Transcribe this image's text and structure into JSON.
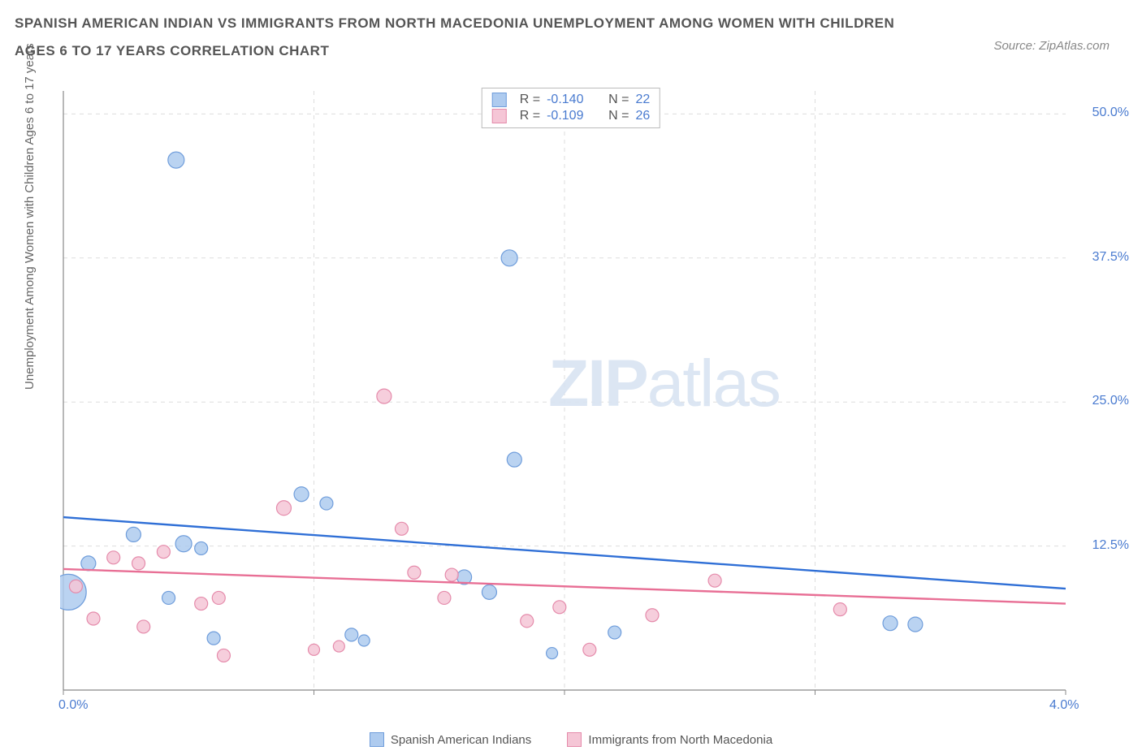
{
  "header": {
    "title": "SPANISH AMERICAN INDIAN VS IMMIGRANTS FROM NORTH MACEDONIA UNEMPLOYMENT AMONG WOMEN WITH CHILDREN AGES 6 TO 17 YEARS CORRELATION CHART",
    "source": "Source: ZipAtlas.com"
  },
  "chart": {
    "type": "scatter",
    "xlim": [
      0,
      4.0
    ],
    "ylim": [
      0,
      52
    ],
    "x_ticks": [
      {
        "v": 0.0,
        "label": "0.0%"
      },
      {
        "v": 4.0,
        "label": "4.0%"
      }
    ],
    "y_ticks": [
      {
        "v": 12.5,
        "label": "12.5%"
      },
      {
        "v": 25.0,
        "label": "25.0%"
      },
      {
        "v": 37.5,
        "label": "37.5%"
      },
      {
        "v": 50.0,
        "label": "50.0%"
      }
    ],
    "grid_color": "#dddddd",
    "axis_color": "#888888",
    "background_color": "#ffffff",
    "y_axis_label": "Unemployment Among Women with Children Ages 6 to 17 years",
    "watermark": "ZIPatlas",
    "series": [
      {
        "name": "Spanish American Indians",
        "fill": "#aecbef",
        "stroke": "#6f9ddb",
        "trend_color": "#2f6fd6",
        "trend_y0": 15.0,
        "trend_y1": 8.8,
        "R": "-0.140",
        "N": "22",
        "points": [
          {
            "x": 0.02,
            "y": 8.5,
            "r": 22
          },
          {
            "x": 0.1,
            "y": 11.0,
            "r": 9
          },
          {
            "x": 0.28,
            "y": 13.5,
            "r": 9
          },
          {
            "x": 0.45,
            "y": 46.0,
            "r": 10
          },
          {
            "x": 0.42,
            "y": 8.0,
            "r": 8
          },
          {
            "x": 0.48,
            "y": 12.7,
            "r": 10
          },
          {
            "x": 0.55,
            "y": 12.3,
            "r": 8
          },
          {
            "x": 0.6,
            "y": 4.5,
            "r": 8
          },
          {
            "x": 0.95,
            "y": 17.0,
            "r": 9
          },
          {
            "x": 1.05,
            "y": 16.2,
            "r": 8
          },
          {
            "x": 1.15,
            "y": 4.8,
            "r": 8
          },
          {
            "x": 1.2,
            "y": 4.3,
            "r": 7
          },
          {
            "x": 1.6,
            "y": 9.8,
            "r": 9
          },
          {
            "x": 1.7,
            "y": 8.5,
            "r": 9
          },
          {
            "x": 1.78,
            "y": 37.5,
            "r": 10
          },
          {
            "x": 1.8,
            "y": 20.0,
            "r": 9
          },
          {
            "x": 1.95,
            "y": 3.2,
            "r": 7
          },
          {
            "x": 2.2,
            "y": 5.0,
            "r": 8
          },
          {
            "x": 3.3,
            "y": 5.8,
            "r": 9
          },
          {
            "x": 3.4,
            "y": 5.7,
            "r": 9
          }
        ]
      },
      {
        "name": "Immigrants from North Macedonia",
        "fill": "#f5c6d6",
        "stroke": "#e58bab",
        "trend_color": "#e86f95",
        "trend_y0": 10.5,
        "trend_y1": 7.5,
        "R": "-0.109",
        "N": "26",
        "points": [
          {
            "x": 0.05,
            "y": 9.0,
            "r": 8
          },
          {
            "x": 0.12,
            "y": 6.2,
            "r": 8
          },
          {
            "x": 0.2,
            "y": 11.5,
            "r": 8
          },
          {
            "x": 0.3,
            "y": 11.0,
            "r": 8
          },
          {
            "x": 0.32,
            "y": 5.5,
            "r": 8
          },
          {
            "x": 0.4,
            "y": 12.0,
            "r": 8
          },
          {
            "x": 0.55,
            "y": 7.5,
            "r": 8
          },
          {
            "x": 0.62,
            "y": 8.0,
            "r": 8
          },
          {
            "x": 0.64,
            "y": 3.0,
            "r": 8
          },
          {
            "x": 0.88,
            "y": 15.8,
            "r": 9
          },
          {
            "x": 1.0,
            "y": 3.5,
            "r": 7
          },
          {
            "x": 1.1,
            "y": 3.8,
            "r": 7
          },
          {
            "x": 1.28,
            "y": 25.5,
            "r": 9
          },
          {
            "x": 1.35,
            "y": 14.0,
            "r": 8
          },
          {
            "x": 1.4,
            "y": 10.2,
            "r": 8
          },
          {
            "x": 1.52,
            "y": 8.0,
            "r": 8
          },
          {
            "x": 1.55,
            "y": 10.0,
            "r": 8
          },
          {
            "x": 1.85,
            "y": 6.0,
            "r": 8
          },
          {
            "x": 1.98,
            "y": 7.2,
            "r": 8
          },
          {
            "x": 2.1,
            "y": 3.5,
            "r": 8
          },
          {
            "x": 2.35,
            "y": 6.5,
            "r": 8
          },
          {
            "x": 2.6,
            "y": 9.5,
            "r": 8
          },
          {
            "x": 3.1,
            "y": 7.0,
            "r": 8
          }
        ]
      }
    ]
  },
  "legend_top": {
    "r_label": "R =",
    "n_label": "N ="
  },
  "legend_bottom": {
    "series1": "Spanish American Indians",
    "series2": "Immigrants from North Macedonia"
  }
}
